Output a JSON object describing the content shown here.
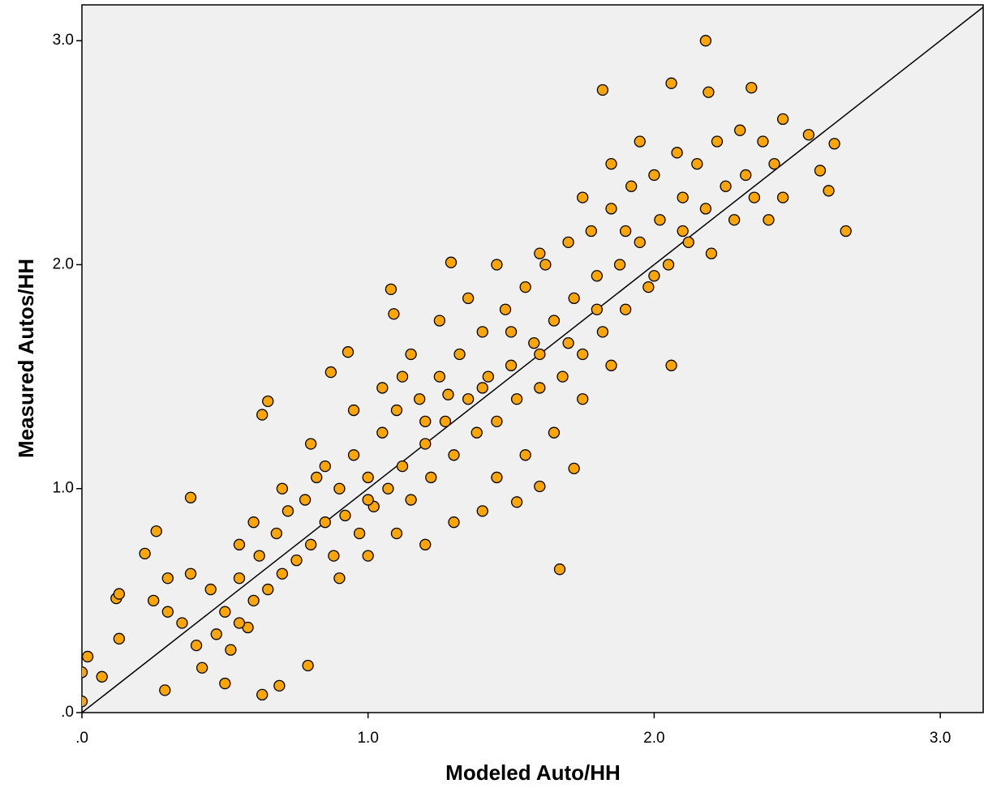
{
  "chart_data": {
    "type": "scatter",
    "x_label": "Modeled Auto/HH",
    "y_label": "Measured Autos/HH",
    "color": "#ffa500",
    "edge_color": "#000000",
    "background": "#f0f0f0",
    "diagonal_reference": true,
    "xlim": [
      0,
      3.15
    ],
    "ylim": [
      0,
      3.16
    ],
    "xticks": [
      {
        "value": 0,
        "label": ".0"
      },
      {
        "value": 1,
        "label": "1.0"
      },
      {
        "value": 2,
        "label": "2.0"
      },
      {
        "value": 3,
        "label": "3.0"
      }
    ],
    "yticks": [
      {
        "value": 0,
        "label": ".0"
      },
      {
        "value": 1,
        "label": "1.0"
      },
      {
        "value": 2,
        "label": "2.0"
      },
      {
        "value": 3,
        "label": "3.0"
      }
    ],
    "x": [
      0,
      0,
      0.02,
      0.07,
      0.12,
      0.13,
      0.13,
      0.22,
      0.26,
      0.38,
      0.29,
      0.63,
      0.69,
      0.79,
      0.5,
      0.63,
      0.65,
      1.08,
      1.09,
      1.29,
      1.67,
      1.72,
      1.82,
      2.06,
      2.18,
      2.19,
      2.34,
      2.67,
      2.61,
      2.63,
      2.58,
      2.54,
      1.52,
      1.6,
      2.06,
      0.93,
      0.87,
      0.25,
      0.3,
      0.35,
      0.4,
      0.45,
      0.5,
      0.55,
      0.6,
      0.3,
      0.38,
      0.42,
      0.47,
      0.52,
      0.55,
      0.58,
      0.62,
      0.65,
      0.68,
      0.7,
      0.72,
      0.75,
      0.78,
      0.8,
      0.82,
      0.85,
      0.88,
      0.9,
      0.92,
      0.95,
      0.97,
      1.0,
      1.02,
      1.05,
      1.07,
      1.1,
      1.12,
      1.15,
      1.18,
      1.2,
      1.22,
      1.25,
      1.27,
      1.3,
      1.32,
      1.35,
      1.38,
      1.4,
      1.42,
      1.45,
      1.48,
      1.5,
      1.52,
      1.55,
      1.58,
      1.6,
      1.62,
      1.65,
      1.68,
      1.7,
      1.72,
      1.75,
      1.78,
      1.8,
      1.82,
      1.85,
      1.88,
      1.9,
      1.92,
      1.95,
      1.98,
      2.0,
      2.02,
      2.05,
      2.08,
      2.1,
      2.12,
      2.15,
      2.18,
      2.2,
      2.22,
      2.25,
      2.28,
      2.3,
      2.32,
      2.35,
      2.38,
      2.4,
      2.42,
      2.45,
      2.45,
      0.9,
      1.0,
      1.1,
      1.2,
      1.3,
      1.4,
      1.45,
      1.55,
      1.65,
      1.75,
      1.85,
      0.7,
      0.8,
      0.95,
      1.05,
      1.15,
      1.25,
      1.35,
      1.45,
      1.6,
      1.75,
      1.85,
      1.95,
      0.6,
      0.55,
      1.12,
      1.28,
      1.5,
      1.7,
      1.9,
      2.1,
      0.85,
      1.0,
      1.2,
      1.4,
      1.6,
      1.8,
      2.0
    ],
    "values": [
      0.18,
      0.05,
      0.25,
      0.16,
      0.51,
      0.53,
      0.33,
      0.71,
      0.81,
      0.96,
      0.1,
      0.08,
      0.12,
      0.21,
      0.13,
      1.33,
      1.39,
      1.89,
      1.78,
      2.01,
      0.64,
      1.09,
      2.78,
      2.81,
      3.0,
      2.77,
      2.79,
      2.15,
      2.33,
      2.54,
      2.42,
      2.58,
      0.94,
      1.01,
      1.55,
      1.61,
      1.52,
      0.5,
      0.45,
      0.4,
      0.3,
      0.55,
      0.45,
      0.6,
      0.5,
      0.6,
      0.62,
      0.2,
      0.35,
      0.28,
      0.75,
      0.38,
      0.7,
      0.55,
      0.8,
      0.62,
      0.9,
      0.68,
      0.95,
      0.75,
      1.05,
      0.85,
      0.7,
      1.0,
      0.88,
      1.15,
      0.8,
      1.05,
      0.92,
      1.25,
      1.0,
      1.35,
      1.1,
      0.95,
      1.4,
      1.2,
      1.05,
      1.5,
      1.3,
      1.15,
      1.6,
      1.4,
      1.25,
      1.7,
      1.5,
      1.3,
      1.8,
      1.55,
      1.4,
      1.9,
      1.65,
      1.45,
      2.0,
      1.75,
      1.5,
      2.1,
      1.85,
      1.6,
      2.15,
      1.95,
      1.7,
      2.25,
      2.0,
      1.8,
      2.35,
      2.1,
      1.9,
      2.4,
      2.2,
      2.0,
      2.5,
      2.3,
      2.1,
      2.45,
      2.25,
      2.05,
      2.55,
      2.35,
      2.2,
      2.6,
      2.4,
      2.3,
      2.55,
      2.2,
      2.45,
      2.65,
      2.3,
      0.6,
      0.7,
      0.8,
      0.75,
      0.85,
      0.9,
      1.05,
      1.15,
      1.25,
      1.4,
      1.55,
      1.0,
      1.2,
      1.35,
      1.45,
      1.6,
      1.75,
      1.85,
      2.0,
      2.05,
      2.3,
      2.45,
      2.55,
      0.85,
      0.4,
      1.5,
      1.42,
      1.7,
      1.65,
      2.15,
      2.15,
      1.1,
      0.95,
      1.3,
      1.45,
      1.6,
      1.8,
      1.95
    ]
  }
}
